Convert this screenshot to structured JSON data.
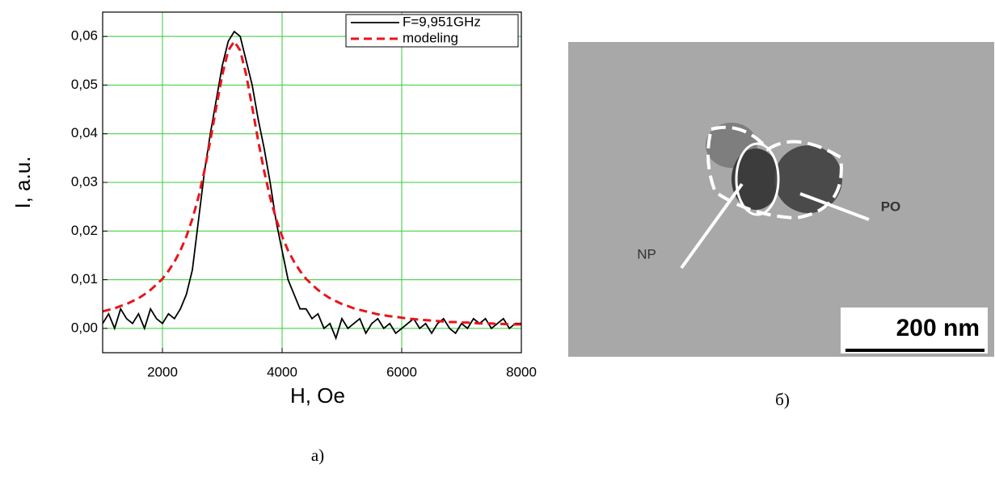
{
  "chart_data": {
    "type": "line",
    "caption": "a)",
    "x_label": "H, Oe",
    "y_label": "I, a.u.",
    "x": [
      1000,
      1100,
      1200,
      1300,
      1400,
      1500,
      1600,
      1700,
      1800,
      1900,
      2000,
      2100,
      2200,
      2300,
      2400,
      2500,
      2600,
      2700,
      2800,
      2900,
      3000,
      3100,
      3200,
      3300,
      3400,
      3500,
      3600,
      3700,
      3800,
      3900,
      4000,
      4100,
      4200,
      4300,
      4400,
      4500,
      4600,
      4700,
      4800,
      4900,
      5000,
      5100,
      5200,
      5300,
      5400,
      5500,
      5600,
      5700,
      5800,
      5900,
      6000,
      6100,
      6200,
      6300,
      6400,
      6500,
      6600,
      6700,
      6800,
      6900,
      7000,
      7100,
      7200,
      7300,
      7400,
      7500,
      7600,
      7700,
      7800,
      7900,
      8000
    ],
    "series": [
      {
        "name": "F=9,951GHz",
        "color": "#000000",
        "dash": false,
        "values": [
          0.001,
          0.003,
          0.0,
          0.004,
          0.002,
          0.001,
          0.003,
          0.0,
          0.004,
          0.002,
          0.001,
          0.003,
          0.002,
          0.004,
          0.007,
          0.012,
          0.022,
          0.032,
          0.04,
          0.047,
          0.054,
          0.059,
          0.061,
          0.06,
          0.055,
          0.05,
          0.043,
          0.037,
          0.03,
          0.022,
          0.016,
          0.01,
          0.007,
          0.004,
          0.004,
          0.002,
          0.003,
          0.0,
          0.001,
          -0.002,
          0.002,
          0.0,
          0.001,
          0.002,
          -0.001,
          0.001,
          0.002,
          0.0,
          0.001,
          -0.001,
          0.0,
          0.001,
          0.002,
          0.0,
          0.001,
          -0.001,
          0.001,
          0.002,
          0.0,
          -0.001,
          0.001,
          0.0,
          0.002,
          0.001,
          0.002,
          0.0,
          0.001,
          0.002,
          0.0,
          0.001,
          0.001
        ]
      },
      {
        "name": "modeling",
        "color": "#e8141c",
        "dash": true,
        "values": [
          0.0035,
          0.0038,
          0.0041,
          0.0046,
          0.005,
          0.0056,
          0.0062,
          0.007,
          0.0079,
          0.009,
          0.0102,
          0.0118,
          0.0137,
          0.016,
          0.0189,
          0.0225,
          0.0269,
          0.0323,
          0.0386,
          0.0455,
          0.0521,
          0.0571,
          0.059,
          0.0571,
          0.0521,
          0.0455,
          0.0386,
          0.0323,
          0.0269,
          0.0225,
          0.0189,
          0.016,
          0.0137,
          0.0118,
          0.0102,
          0.009,
          0.0079,
          0.007,
          0.0062,
          0.0056,
          0.005,
          0.0046,
          0.0041,
          0.0038,
          0.0035,
          0.0032,
          0.0029,
          0.0027,
          0.0025,
          0.0024,
          0.0022,
          0.002,
          0.0019,
          0.0018,
          0.0017,
          0.0016,
          0.0015,
          0.0014,
          0.0013,
          0.0013,
          0.0012,
          0.0012,
          0.0011,
          0.001,
          0.001,
          0.001,
          0.0009,
          0.0009,
          0.0008,
          0.0008,
          0.0008
        ]
      }
    ],
    "xlim": [
      1000,
      8000
    ],
    "xticks": [
      2000,
      4000,
      6000,
      8000
    ],
    "ylim": [
      -0.005,
      0.065
    ],
    "yticks": [
      {
        "value": 0,
        "label": "0,00"
      },
      {
        "value": 0.01,
        "label": "0,01"
      },
      {
        "value": 0.02,
        "label": "0,02"
      },
      {
        "value": 0.03,
        "label": "0,03"
      },
      {
        "value": 0.04,
        "label": "0,04"
      },
      {
        "value": 0.05,
        "label": "0,05"
      },
      {
        "value": 0.06,
        "label": "0,06"
      }
    ],
    "grid": true,
    "grid_color": "#33cc33",
    "legend": "upper right"
  },
  "photo": {
    "labels": [
      "NP",
      "PO"
    ],
    "scale_bar": "200 nm",
    "caption": "б)"
  }
}
